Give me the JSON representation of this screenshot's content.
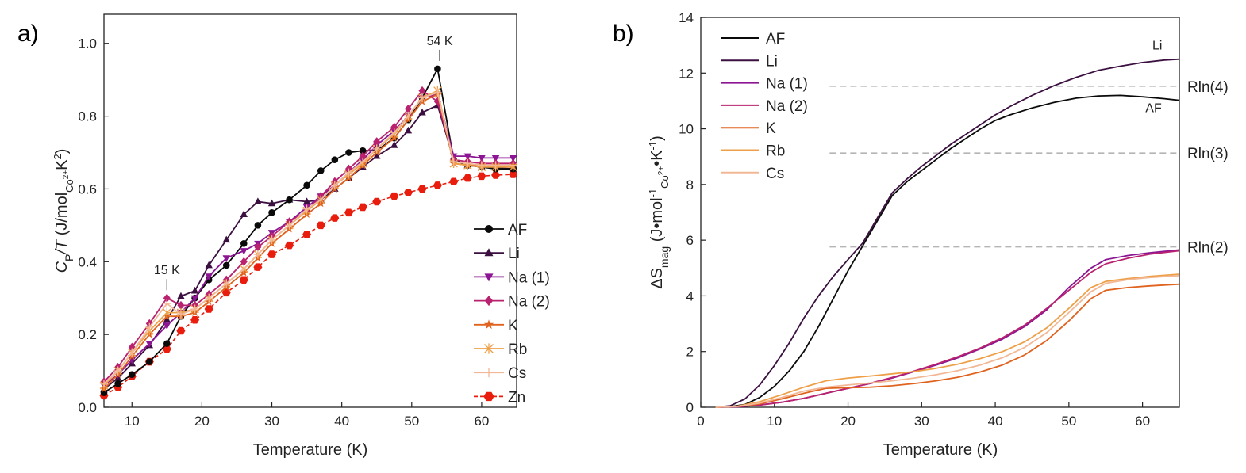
{
  "colors": {
    "AF": "#0a0a0a",
    "Li": "#3b1040",
    "Na (1)": "#8b1592",
    "Na (2)": "#b8226f",
    "K": "#e0621f",
    "Rb": "#eea048",
    "Cs": "#f2b896",
    "Zn": "#e81d0d",
    "reference": "#b5b5b5"
  },
  "chart_data": [
    {
      "panel": "a)",
      "type": "line",
      "xlabel": "Temperature (K)",
      "ylabel": {
        "main": "C",
        "sub1": "P",
        "rest": "/T (J/mol",
        "sub2": "Co",
        "sup2": "2+",
        "tail": "K",
        "sup3": "2",
        "close": ")"
      },
      "xlim": [
        6,
        65
      ],
      "ylim": [
        0,
        1.08
      ],
      "xticks": [
        10,
        20,
        30,
        40,
        50,
        60
      ],
      "xticklabels": [
        "10",
        "20",
        "30",
        "40",
        "50",
        "60"
      ],
      "yticks": [
        0,
        0.2,
        0.4,
        0.6,
        0.8,
        1.0
      ],
      "yticklabels": [
        "0.0",
        "0.2",
        "0.4",
        "0.6",
        "0.8",
        "1.0"
      ],
      "legend_position": "lower-right",
      "annotations": [
        {
          "text": "54 K",
          "x": 54,
          "y": 0.93
        },
        {
          "text": "15 K",
          "x": 15,
          "y": 0.3
        }
      ],
      "x": [
        6,
        8,
        10,
        12.5,
        15,
        17,
        19,
        21,
        23.5,
        26,
        28,
        30,
        32.5,
        35,
        37,
        39,
        41,
        43,
        45,
        47.5,
        49.5,
        51.5,
        53.7,
        56,
        58,
        60,
        62,
        64.5
      ],
      "series": [
        {
          "name": "AF",
          "marker": "circle",
          "dashed": false,
          "values": [
            0.04,
            0.065,
            0.09,
            0.125,
            0.175,
            0.25,
            0.3,
            0.35,
            0.39,
            0.45,
            0.5,
            0.535,
            0.57,
            0.61,
            0.65,
            0.68,
            0.7,
            0.705,
            0.705,
            0.74,
            0.79,
            0.85,
            0.93,
            0.68,
            0.665,
            0.66,
            0.655,
            0.655
          ]
        },
        {
          "name": "Li",
          "marker": "triangle-up",
          "dashed": false,
          "values": [
            0.05,
            0.08,
            0.12,
            0.17,
            0.24,
            0.305,
            0.32,
            0.39,
            0.46,
            0.53,
            0.565,
            0.56,
            0.57,
            0.565,
            0.57,
            0.6,
            0.63,
            0.66,
            0.69,
            0.72,
            0.76,
            0.81,
            0.83,
            0.68,
            0.665,
            0.66,
            0.658,
            0.655
          ]
        },
        {
          "name": "Na (1)",
          "marker": "triangle-down",
          "dashed": false,
          "values": [
            0.06,
            0.09,
            0.13,
            0.175,
            0.225,
            0.26,
            0.3,
            0.36,
            0.41,
            0.43,
            0.45,
            0.48,
            0.51,
            0.55,
            0.58,
            0.61,
            0.645,
            0.68,
            0.72,
            0.76,
            0.8,
            0.85,
            0.86,
            0.69,
            0.69,
            0.685,
            0.685,
            0.685
          ]
        },
        {
          "name": "Na (2)",
          "marker": "diamond",
          "dashed": false,
          "values": [
            0.07,
            0.11,
            0.165,
            0.23,
            0.3,
            0.28,
            0.28,
            0.31,
            0.35,
            0.4,
            0.44,
            0.47,
            0.51,
            0.54,
            0.58,
            0.62,
            0.655,
            0.69,
            0.73,
            0.77,
            0.82,
            0.87,
            0.84,
            0.68,
            0.675,
            0.67,
            0.67,
            0.67
          ]
        },
        {
          "name": "K",
          "marker": "star",
          "dashed": false,
          "values": [
            0.05,
            0.09,
            0.14,
            0.2,
            0.25,
            0.25,
            0.26,
            0.29,
            0.33,
            0.37,
            0.41,
            0.45,
            0.49,
            0.53,
            0.56,
            0.6,
            0.63,
            0.665,
            0.7,
            0.74,
            0.79,
            0.84,
            0.86,
            0.67,
            0.665,
            0.665,
            0.665,
            0.665
          ]
        },
        {
          "name": "Rb",
          "marker": "x-star",
          "dashed": false,
          "values": [
            0.06,
            0.1,
            0.15,
            0.21,
            0.26,
            0.26,
            0.27,
            0.3,
            0.34,
            0.38,
            0.42,
            0.46,
            0.5,
            0.54,
            0.57,
            0.61,
            0.64,
            0.67,
            0.71,
            0.75,
            0.8,
            0.85,
            0.87,
            0.67,
            0.665,
            0.66,
            0.66,
            0.66
          ]
        },
        {
          "name": "Cs",
          "marker": "plus",
          "dashed": false,
          "values": [
            0.065,
            0.1,
            0.15,
            0.22,
            0.285,
            0.255,
            0.27,
            0.3,
            0.34,
            0.38,
            0.42,
            0.46,
            0.5,
            0.545,
            0.57,
            0.61,
            0.645,
            0.675,
            0.71,
            0.755,
            0.8,
            0.85,
            0.865,
            0.675,
            0.67,
            0.665,
            0.665,
            0.665
          ]
        },
        {
          "name": "Zn",
          "marker": "hexagon",
          "dashed": true,
          "values": [
            0.032,
            0.055,
            0.085,
            0.125,
            0.16,
            0.21,
            0.24,
            0.27,
            0.315,
            0.35,
            0.385,
            0.42,
            0.445,
            0.475,
            0.5,
            0.52,
            0.535,
            0.55,
            0.565,
            0.58,
            0.59,
            0.6,
            0.61,
            0.62,
            0.63,
            0.635,
            0.638,
            0.64
          ]
        }
      ]
    },
    {
      "panel": "b)",
      "type": "line",
      "xlabel": "Temperature (K)",
      "ylabel": {
        "main": "ΔS",
        "sub1": "mag",
        "rest": " (J•mol",
        "sup1": "-1",
        "sub2": "Co",
        "sup2": "2+",
        "tail": "•K",
        "sup3": "-1",
        "close": ")"
      },
      "xlim": [
        0,
        65
      ],
      "ylim": [
        0,
        14
      ],
      "xticks": [
        0,
        10,
        20,
        30,
        40,
        50,
        60
      ],
      "xticklabels": [
        "0",
        "10",
        "20",
        "30",
        "40",
        "50",
        "60"
      ],
      "yticks": [
        0,
        2,
        4,
        6,
        8,
        10,
        12,
        14
      ],
      "yticklabels": [
        "0",
        "2",
        "4",
        "6",
        "8",
        "10",
        "12",
        "14"
      ],
      "legend_position": "top-left",
      "reference_lines": [
        {
          "label": "Rln(4)",
          "y": 11.53
        },
        {
          "label": "Rln(3)",
          "y": 9.13
        },
        {
          "label": "Rln(2)",
          "y": 5.76
        }
      ],
      "curve_labels": [
        {
          "text": "Li",
          "x": 62,
          "y": 12.85
        },
        {
          "text": "AF",
          "x": 61.5,
          "y": 10.6
        }
      ],
      "series": [
        {
          "name": "AF",
          "x": [
            2,
            4,
            6,
            8,
            10,
            12,
            14,
            16,
            18,
            20,
            22,
            24,
            26,
            28,
            30,
            32,
            34,
            36,
            38,
            40,
            42,
            45,
            48,
            51,
            54,
            57,
            60,
            63,
            65
          ],
          "y": [
            0,
            0.02,
            0.1,
            0.35,
            0.75,
            1.3,
            2.0,
            2.9,
            3.9,
            4.9,
            5.8,
            6.7,
            7.6,
            8.1,
            8.5,
            8.9,
            9.3,
            9.65,
            10.0,
            10.3,
            10.5,
            10.75,
            10.95,
            11.1,
            11.18,
            11.2,
            11.15,
            11.08,
            11.02
          ]
        },
        {
          "name": "Li",
          "x": [
            2,
            4,
            6,
            8,
            10,
            12,
            14,
            16,
            18,
            20,
            22,
            24,
            26,
            28,
            30,
            32,
            34,
            36,
            38,
            40,
            42,
            45,
            48,
            51,
            54,
            57,
            60,
            63,
            65
          ],
          "y": [
            0,
            0.05,
            0.3,
            0.8,
            1.5,
            2.3,
            3.2,
            4.0,
            4.7,
            5.3,
            5.9,
            6.8,
            7.7,
            8.2,
            8.65,
            9.05,
            9.45,
            9.8,
            10.15,
            10.5,
            10.8,
            11.2,
            11.55,
            11.85,
            12.1,
            12.25,
            12.38,
            12.47,
            12.5
          ]
        },
        {
          "name": "Na (1)",
          "x": [
            2,
            5,
            8,
            11,
            14,
            17,
            20,
            23,
            26,
            29,
            32,
            35,
            38,
            41,
            44,
            47,
            50,
            53,
            55,
            58,
            61,
            65
          ],
          "y": [
            0,
            0.02,
            0.08,
            0.18,
            0.32,
            0.5,
            0.68,
            0.85,
            1.05,
            1.28,
            1.52,
            1.78,
            2.1,
            2.45,
            2.9,
            3.5,
            4.3,
            5.0,
            5.3,
            5.45,
            5.55,
            5.65
          ]
        },
        {
          "name": "Na (2)",
          "x": [
            2,
            5,
            8,
            11,
            14,
            17,
            20,
            23,
            26,
            29,
            32,
            35,
            38,
            41,
            44,
            47,
            50,
            53,
            55,
            58,
            61,
            65
          ],
          "y": [
            0,
            0.02,
            0.08,
            0.18,
            0.32,
            0.5,
            0.68,
            0.86,
            1.07,
            1.3,
            1.55,
            1.82,
            2.13,
            2.5,
            2.95,
            3.55,
            4.2,
            4.85,
            5.15,
            5.35,
            5.5,
            5.62
          ]
        },
        {
          "name": "K",
          "x": [
            2,
            5,
            8,
            11,
            14,
            17,
            20,
            23,
            26,
            29,
            32,
            35,
            38,
            41,
            44,
            47,
            50,
            53,
            55,
            58,
            61,
            65
          ],
          "y": [
            0,
            0.03,
            0.12,
            0.3,
            0.5,
            0.68,
            0.7,
            0.72,
            0.77,
            0.85,
            0.95,
            1.08,
            1.27,
            1.52,
            1.88,
            2.4,
            3.1,
            3.9,
            4.2,
            4.3,
            4.36,
            4.42
          ]
        },
        {
          "name": "Rb",
          "x": [
            2,
            5,
            8,
            11,
            14,
            17,
            20,
            23,
            26,
            29,
            32,
            35,
            38,
            41,
            44,
            47,
            50,
            53,
            55,
            58,
            61,
            65
          ],
          "y": [
            0,
            0.04,
            0.2,
            0.45,
            0.72,
            0.95,
            1.05,
            1.12,
            1.2,
            1.28,
            1.4,
            1.55,
            1.75,
            2.0,
            2.35,
            2.85,
            3.55,
            4.3,
            4.52,
            4.62,
            4.7,
            4.78
          ]
        },
        {
          "name": "Cs",
          "x": [
            2,
            5,
            8,
            11,
            14,
            17,
            20,
            23,
            26,
            29,
            32,
            35,
            38,
            41,
            44,
            47,
            50,
            53,
            55,
            58,
            61,
            65
          ],
          "y": [
            0,
            0.03,
            0.15,
            0.35,
            0.58,
            0.72,
            0.8,
            0.87,
            0.95,
            1.05,
            1.17,
            1.32,
            1.52,
            1.78,
            2.15,
            2.68,
            3.4,
            4.15,
            4.45,
            4.58,
            4.66,
            4.73
          ]
        }
      ],
      "legend_series": [
        "AF",
        "Li",
        "Na (1)",
        "Na (2)",
        "K",
        "Rb",
        "Cs"
      ]
    }
  ]
}
